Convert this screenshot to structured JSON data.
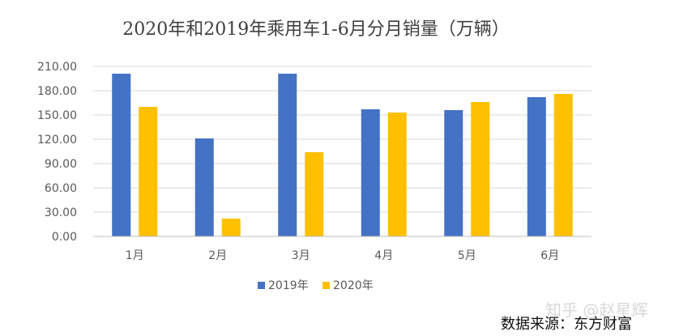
{
  "chart_data": {
    "type": "bar",
    "title": "2020年和2019年乘用车1-6月分月销量（万辆）",
    "categories": [
      "1月",
      "2月",
      "3月",
      "4月",
      "5月",
      "6月"
    ],
    "series": [
      {
        "name": "2019年",
        "color": "#4472c4",
        "values": [
          201,
          121,
          201,
          157,
          156,
          172
        ]
      },
      {
        "name": "2020年",
        "color": "#ffc000",
        "values": [
          160,
          22,
          104,
          153,
          166,
          176
        ]
      }
    ],
    "ylim": [
      0,
      210
    ],
    "yticks": [
      "0.00",
      "30.00",
      "60.00",
      "90.00",
      "120.00",
      "150.00",
      "180.00",
      "210.00"
    ],
    "legend_position": "bottom",
    "grid": true
  },
  "watermark": "知乎 @赵星辉",
  "source": "数据来源：东方财富"
}
